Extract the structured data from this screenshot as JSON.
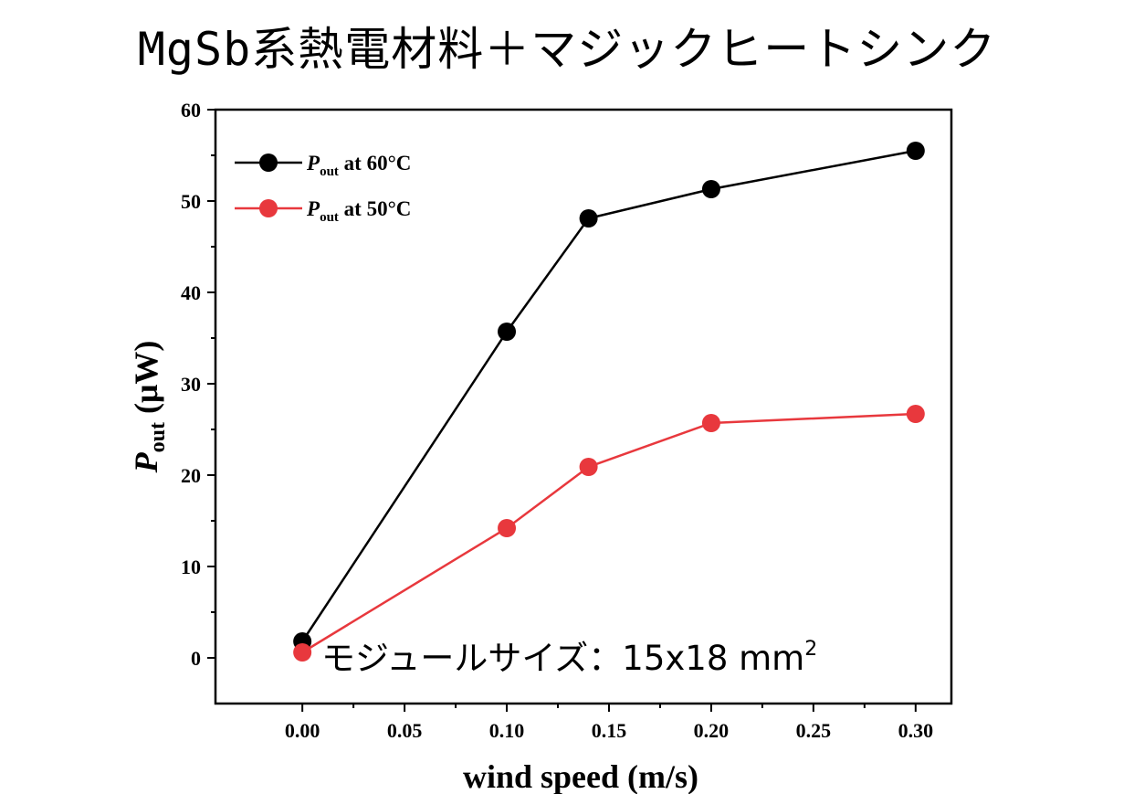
{
  "title": "MgSb系熱電材料＋マジックヒートシンク",
  "chart_data": {
    "type": "line",
    "title": "MgSb系熱電材料＋マジックヒートシンク",
    "xlabel": "wind speed (m/s)",
    "ylabel": {
      "symbol": "P",
      "sub": "out",
      "unit": " (μW)"
    },
    "xlim": [
      -0.0425,
      0.3175
    ],
    "ylim": [
      -5,
      60
    ],
    "xticks": [
      0.0,
      0.05,
      0.1,
      0.15,
      0.2,
      0.25,
      0.3
    ],
    "xtick_labels": [
      "0.00",
      "0.05",
      "0.10",
      "0.15",
      "0.20",
      "0.25",
      "0.30"
    ],
    "yticks": [
      0,
      10,
      20,
      30,
      40,
      50,
      60
    ],
    "ytick_labels": [
      "0",
      "10",
      "20",
      "30",
      "40",
      "50",
      "60"
    ],
    "grid": false,
    "legend_position": "top-left",
    "series": [
      {
        "name": {
          "symbol": "P",
          "sub": "out",
          "rest": " at 60°C"
        },
        "color": "#000000",
        "x": [
          0.0,
          0.1,
          0.14,
          0.2,
          0.3
        ],
        "y": [
          1.8,
          35.7,
          48.1,
          51.3,
          55.5
        ]
      },
      {
        "name": {
          "symbol": "P",
          "sub": "out",
          "rest": " at 50°C"
        },
        "color": "#e8383d",
        "x": [
          0.0,
          0.1,
          0.14,
          0.2,
          0.3
        ],
        "y": [
          0.6,
          14.2,
          20.9,
          25.7,
          26.7
        ]
      }
    ],
    "annotation": {
      "text": "モジュールサイズ：15x18 mm",
      "superscript": "2"
    }
  }
}
